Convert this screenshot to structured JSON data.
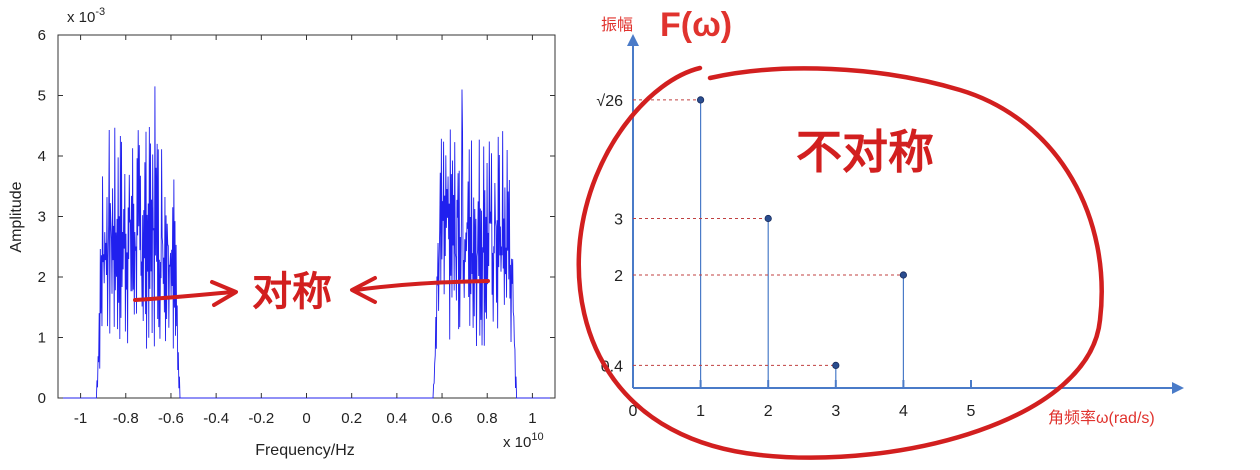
{
  "chart_data": [
    {
      "type": "line",
      "title": "",
      "xlabel": "Frequency/Hz",
      "ylabel": "Amplitude",
      "x_exponent_label": "x 10",
      "x_exponent_power": "10",
      "y_exponent_label": "x 10",
      "y_exponent_power": "-3",
      "xlim": [
        -1.1,
        1.1
      ],
      "ylim": [
        0,
        6
      ],
      "x_ticks": [
        "-1",
        "-0.8",
        "-0.6",
        "-0.4",
        "-0.2",
        "0",
        "0.2",
        "0.4",
        "0.6",
        "0.8",
        "1"
      ],
      "y_ticks": [
        "0",
        "1",
        "2",
        "3",
        "4",
        "5",
        "6"
      ],
      "bands": [
        {
          "x_start": -0.93,
          "x_end": -0.56,
          "peak": 5.15,
          "typical": 3.2
        },
        {
          "x_start": 0.56,
          "x_end": 0.93,
          "peak": 5.1,
          "typical": 3.2
        }
      ],
      "series_color": "#2020ee",
      "annotation": "对称"
    },
    {
      "type": "scatter",
      "title": "",
      "ylabel": "振幅",
      "y_symbol": "F(ω)",
      "xlabel": "角频率ω(rad/s)",
      "x_ticks": [
        "0",
        "1",
        "2",
        "3",
        "4",
        "5"
      ],
      "y_labels": [
        "√26",
        "3",
        "2",
        "0.4"
      ],
      "points": [
        {
          "x": 1,
          "y": 5.099
        },
        {
          "x": 2,
          "y": 3
        },
        {
          "x": 3,
          "y": 0.4
        },
        {
          "x": 4,
          "y": 2
        }
      ],
      "axis_color": "#4a7bc8",
      "annotation": "不对称"
    }
  ]
}
